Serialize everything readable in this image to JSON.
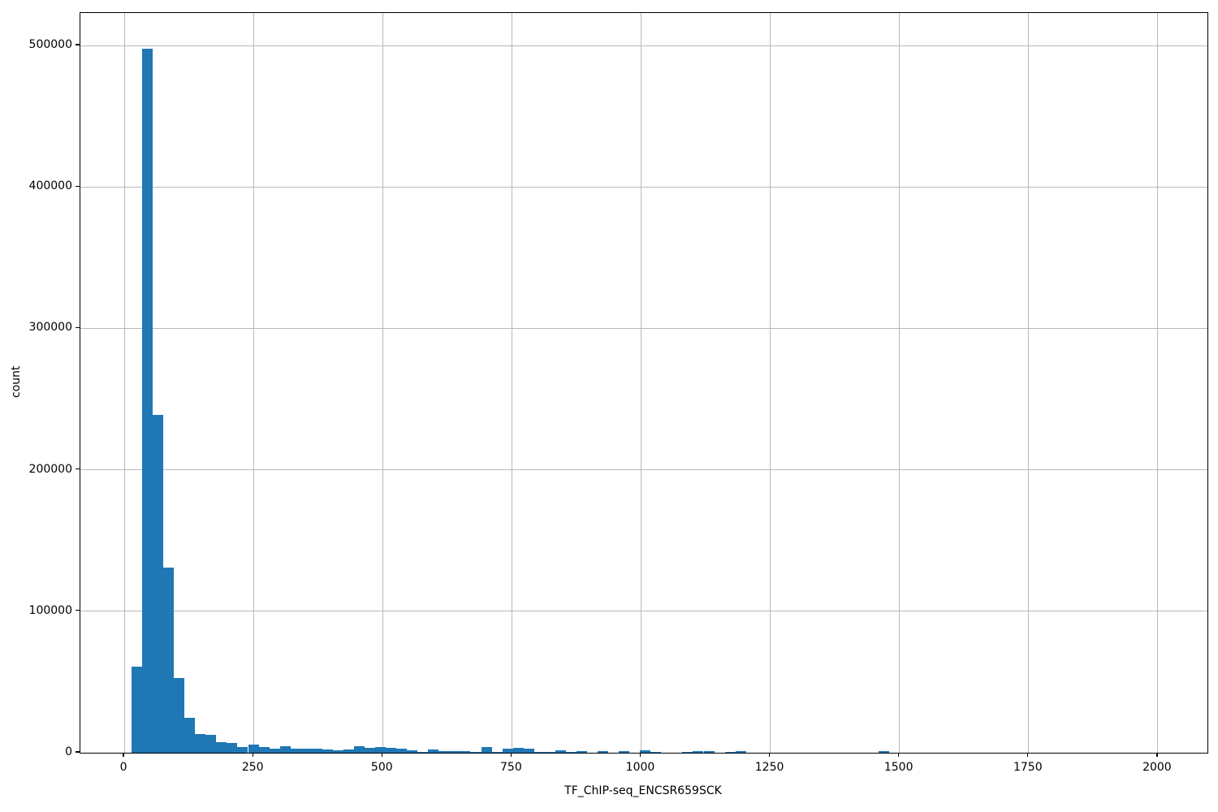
{
  "figure": {
    "background": "#ffffff"
  },
  "chart_data": {
    "type": "bar",
    "subtype": "histogram",
    "title": "",
    "xlabel": "TF_ChIP-seq_ENCSR659SCK",
    "ylabel": "count",
    "xlim": [
      -85,
      2096
    ],
    "ylim": [
      0,
      523000
    ],
    "x_ticks": [
      0,
      250,
      500,
      750,
      1000,
      1250,
      1500,
      1750,
      2000
    ],
    "x_tick_labels": [
      "0",
      "250",
      "500",
      "750",
      "1000",
      "1250",
      "1500",
      "1750",
      "2000"
    ],
    "y_ticks": [
      0,
      100000,
      200000,
      300000,
      400000,
      500000
    ],
    "y_tick_labels": [
      "0",
      "100000",
      "200000",
      "300000",
      "400000",
      "500000"
    ],
    "grid": true,
    "legend_position": "none",
    "bar_color": "#1f77b4",
    "grid_color": "#b8b8b8",
    "spine_color": "#000000",
    "bin_width": 20.5,
    "bins": [
      [
        14,
        61000
      ],
      [
        34.5,
        497500
      ],
      [
        55,
        239000
      ],
      [
        75.5,
        131000
      ],
      [
        96,
        53000
      ],
      [
        116.5,
        24500
      ],
      [
        137,
        13500
      ],
      [
        157.5,
        12500
      ],
      [
        178,
        7600
      ],
      [
        198.5,
        6700
      ],
      [
        219,
        4200
      ],
      [
        239.5,
        6000
      ],
      [
        260,
        4200
      ],
      [
        280.5,
        3000
      ],
      [
        301,
        4500
      ],
      [
        321.5,
        3000
      ],
      [
        342,
        2600
      ],
      [
        362.5,
        3000
      ],
      [
        383,
        2100
      ],
      [
        403.5,
        1900
      ],
      [
        424,
        2300
      ],
      [
        444.5,
        4400
      ],
      [
        465,
        3400
      ],
      [
        485.5,
        4100
      ],
      [
        506,
        3300
      ],
      [
        526.5,
        2700
      ],
      [
        547,
        2000
      ],
      [
        567.5,
        700
      ],
      [
        588,
        2200
      ],
      [
        608.5,
        900
      ],
      [
        629,
        1100
      ],
      [
        649.5,
        1000
      ],
      [
        670,
        700
      ],
      [
        690.5,
        4200
      ],
      [
        711,
        600
      ],
      [
        731.5,
        3100
      ],
      [
        752,
        3700
      ],
      [
        772.5,
        2900
      ],
      [
        793,
        700
      ],
      [
        813.5,
        600
      ],
      [
        834,
        2000
      ],
      [
        854.5,
        500
      ],
      [
        875,
        1000
      ],
      [
        916,
        1000
      ],
      [
        957,
        1000
      ],
      [
        998,
        1600
      ],
      [
        1018.5,
        500
      ],
      [
        1080,
        400
      ],
      [
        1100.5,
        1100
      ],
      [
        1121,
        1100
      ],
      [
        1162,
        400
      ],
      [
        1182.5,
        1000
      ],
      [
        1459.5,
        1000
      ]
    ]
  }
}
